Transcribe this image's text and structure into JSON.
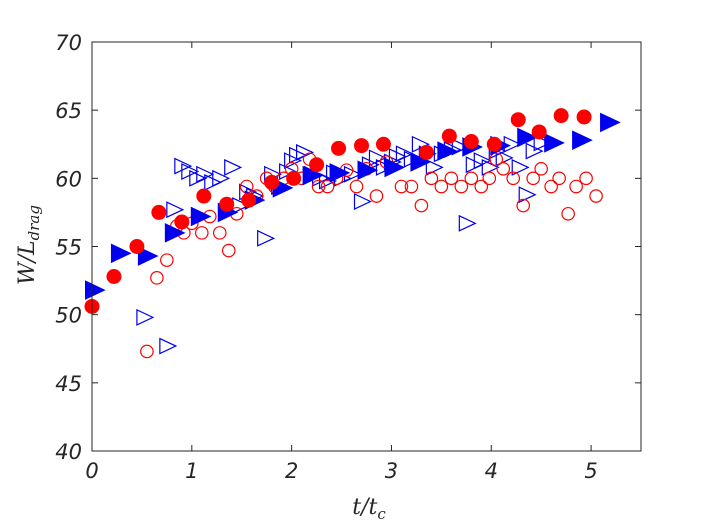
{
  "chart_data": {
    "type": "scatter",
    "title": "",
    "xlabel": "t/t_c",
    "ylabel": "W/L_drag",
    "xlim": [
      0,
      5.5
    ],
    "ylim": [
      40,
      70
    ],
    "xticks": [
      0,
      1,
      2,
      3,
      4,
      5
    ],
    "yticks": [
      40,
      45,
      50,
      55,
      60,
      65,
      70
    ],
    "grid": false,
    "legend": "none",
    "series": [
      {
        "marker": "filled-triangle-right",
        "color": "#0000ee",
        "points": [
          [
            0.02,
            51.8
          ],
          [
            0.28,
            54.5
          ],
          [
            0.55,
            54.3
          ],
          [
            0.82,
            56.0
          ],
          [
            1.08,
            57.2
          ],
          [
            1.35,
            57.5
          ],
          [
            1.62,
            58.4
          ],
          [
            1.9,
            59.3
          ],
          [
            2.2,
            60.2
          ],
          [
            2.47,
            60.4
          ],
          [
            2.75,
            60.6
          ],
          [
            3.02,
            60.8
          ],
          [
            3.28,
            61.2
          ],
          [
            3.55,
            62.0
          ],
          [
            3.8,
            62.3
          ],
          [
            4.08,
            62.4
          ],
          [
            4.35,
            63.0
          ],
          [
            4.62,
            62.6
          ],
          [
            4.9,
            62.8
          ],
          [
            5.18,
            64.1
          ]
        ]
      },
      {
        "marker": "filled-circle",
        "color": "#ff0000",
        "points": [
          [
            0.0,
            50.6
          ],
          [
            0.22,
            52.8
          ],
          [
            0.45,
            55.0
          ],
          [
            0.67,
            57.5
          ],
          [
            0.9,
            56.8
          ],
          [
            1.12,
            58.7
          ],
          [
            1.35,
            58.1
          ],
          [
            1.57,
            58.4
          ],
          [
            1.8,
            59.7
          ],
          [
            2.02,
            60.0
          ],
          [
            2.25,
            61.0
          ],
          [
            2.47,
            62.2
          ],
          [
            2.7,
            62.4
          ],
          [
            2.92,
            62.5
          ],
          [
            3.35,
            61.9
          ],
          [
            3.58,
            63.1
          ],
          [
            3.8,
            62.7
          ],
          [
            4.03,
            62.5
          ],
          [
            4.27,
            64.3
          ],
          [
            4.48,
            63.4
          ],
          [
            4.7,
            64.6
          ],
          [
            4.93,
            64.5
          ]
        ]
      },
      {
        "marker": "open-triangle-right",
        "color": "#0000ee",
        "points": [
          [
            0.52,
            49.8
          ],
          [
            0.75,
            47.7
          ],
          [
            0.82,
            57.7
          ],
          [
            0.9,
            60.9
          ],
          [
            0.97,
            60.5
          ],
          [
            1.05,
            60.0
          ],
          [
            1.12,
            60.3
          ],
          [
            1.2,
            59.7
          ],
          [
            1.28,
            60.0
          ],
          [
            1.4,
            60.8
          ],
          [
            1.48,
            58.0
          ],
          [
            1.55,
            59.0
          ],
          [
            1.62,
            58.7
          ],
          [
            1.73,
            55.6
          ],
          [
            1.8,
            60.3
          ],
          [
            1.87,
            59.4
          ],
          [
            1.95,
            60.5
          ],
          [
            2.0,
            61.3
          ],
          [
            2.05,
            61.7
          ],
          [
            2.12,
            61.9
          ],
          [
            2.2,
            60.3
          ],
          [
            2.28,
            60.0
          ],
          [
            2.35,
            59.8
          ],
          [
            2.42,
            60.4
          ],
          [
            2.5,
            60.0
          ],
          [
            2.6,
            60.3
          ],
          [
            2.7,
            58.3
          ],
          [
            2.78,
            61.0
          ],
          [
            2.85,
            61.5
          ],
          [
            2.92,
            60.8
          ],
          [
            3.0,
            61.2
          ],
          [
            3.05,
            61.6
          ],
          [
            3.12,
            61.8
          ],
          [
            3.2,
            61.4
          ],
          [
            3.28,
            62.5
          ],
          [
            3.35,
            61.8
          ],
          [
            3.42,
            60.8
          ],
          [
            3.5,
            61.8
          ],
          [
            3.6,
            62.1
          ],
          [
            3.68,
            62.3
          ],
          [
            3.75,
            56.7
          ],
          [
            3.82,
            61.0
          ],
          [
            3.9,
            61.3
          ],
          [
            3.98,
            60.8
          ],
          [
            4.05,
            62.0
          ],
          [
            4.12,
            61.5
          ],
          [
            4.2,
            62.5
          ],
          [
            4.28,
            60.8
          ],
          [
            4.35,
            58.8
          ],
          [
            4.42,
            62.0
          ],
          [
            4.5,
            62.6
          ]
        ]
      },
      {
        "marker": "open-circle",
        "color": "#ff0000",
        "points": [
          [
            0.55,
            47.3
          ],
          [
            0.65,
            52.7
          ],
          [
            0.75,
            54.0
          ],
          [
            0.85,
            56.5
          ],
          [
            0.92,
            56.0
          ],
          [
            1.0,
            56.7
          ],
          [
            1.1,
            56.0
          ],
          [
            1.18,
            57.2
          ],
          [
            1.28,
            56.0
          ],
          [
            1.37,
            54.7
          ],
          [
            1.45,
            57.4
          ],
          [
            1.55,
            59.4
          ],
          [
            1.65,
            58.7
          ],
          [
            1.75,
            60.0
          ],
          [
            1.83,
            59.4
          ],
          [
            1.92,
            60.0
          ],
          [
            2.0,
            60.7
          ],
          [
            2.1,
            60.0
          ],
          [
            2.18,
            61.4
          ],
          [
            2.27,
            59.4
          ],
          [
            2.36,
            59.4
          ],
          [
            2.45,
            60.0
          ],
          [
            2.55,
            60.6
          ],
          [
            2.65,
            59.4
          ],
          [
            2.75,
            60.7
          ],
          [
            2.85,
            58.7
          ],
          [
            2.95,
            61.2
          ],
          [
            3.1,
            59.4
          ],
          [
            3.2,
            59.4
          ],
          [
            3.3,
            58.0
          ],
          [
            3.4,
            60.0
          ],
          [
            3.5,
            59.4
          ],
          [
            3.6,
            60.0
          ],
          [
            3.7,
            59.4
          ],
          [
            3.8,
            60.0
          ],
          [
            3.9,
            59.4
          ],
          [
            3.98,
            60.0
          ],
          [
            4.05,
            61.4
          ],
          [
            4.12,
            60.7
          ],
          [
            4.22,
            60.0
          ],
          [
            4.32,
            58.0
          ],
          [
            4.42,
            60.0
          ],
          [
            4.5,
            60.7
          ],
          [
            4.6,
            59.4
          ],
          [
            4.68,
            60.0
          ],
          [
            4.77,
            57.4
          ],
          [
            4.85,
            59.4
          ],
          [
            4.95,
            60.0
          ],
          [
            5.05,
            58.7
          ]
        ]
      }
    ]
  }
}
